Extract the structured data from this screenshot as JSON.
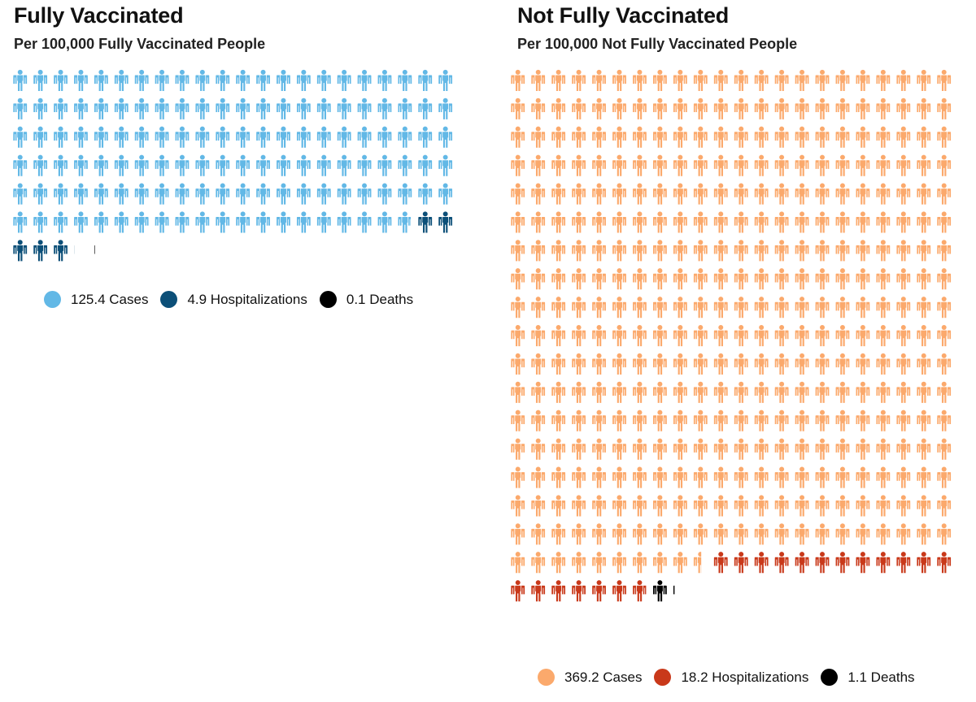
{
  "chart_data": [
    {
      "type": "waffle",
      "title": "Fully Vaccinated",
      "subtitle": "Per 100,000 Fully Vaccinated People",
      "icons_per_row": 22,
      "series": [
        {
          "name": "Cases",
          "value": 125.4,
          "color": "#62b8e6",
          "legend_text": "125.4 Cases"
        },
        {
          "name": "Hospitalizations",
          "value": 4.9,
          "color": "#0c4f78",
          "legend_text": "4.9 Hospitalizations"
        },
        {
          "name": "Deaths",
          "value": 0.1,
          "color": "#000000",
          "legend_text": "0.1 Deaths"
        }
      ]
    },
    {
      "type": "waffle",
      "title": "Not Fully Vaccinated",
      "subtitle": "Per 100,000 Not Fully Vaccinated People",
      "icons_per_row": 22,
      "series": [
        {
          "name": "Cases",
          "value": 369.2,
          "color": "#fba96c",
          "legend_text": "369.2 Cases"
        },
        {
          "name": "Hospitalizations",
          "value": 18.2,
          "color": "#c9391a",
          "legend_text": "18.2 Hospitalizations"
        },
        {
          "name": "Deaths",
          "value": 1.1,
          "color": "#000000",
          "legend_text": "1.1 Deaths"
        }
      ]
    }
  ]
}
